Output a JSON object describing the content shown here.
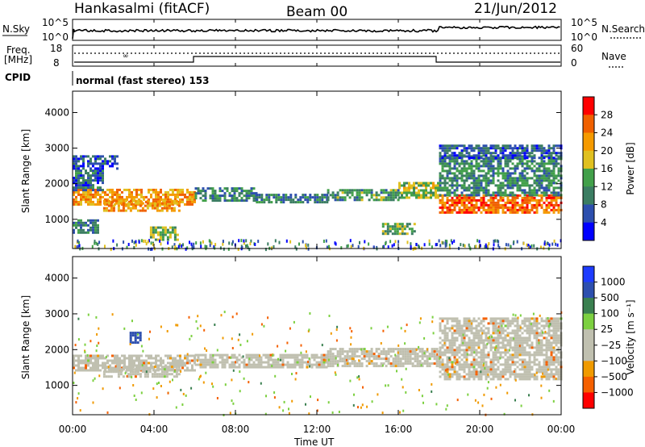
{
  "header": {
    "station": "Hankasalmi (fitACF)",
    "beam": "Beam 00",
    "date": "21/Jun/2012"
  },
  "noise_panel": {
    "left_label": "N.Sky",
    "right_label": "N.Search",
    "left_ticks": [
      "10^5",
      "10^0"
    ],
    "right_ticks": [
      "10^5",
      "10^0"
    ]
  },
  "freq_panel": {
    "left_label_1": "Freq.",
    "left_label_2": "[MHz]",
    "right_label": "Nave",
    "left_ticks": [
      "18",
      "8"
    ],
    "right_ticks": [
      "60",
      "0"
    ]
  },
  "cpid": {
    "label": "CPID",
    "value": "normal (fast stereo) 153"
  },
  "x_axis": {
    "label": "Time UT",
    "ticks": [
      "00:00",
      "04:00",
      "08:00",
      "12:00",
      "16:00",
      "20:00",
      "00:00"
    ]
  },
  "colors": {
    "power": [
      "#0000ff",
      "#2d4fae",
      "#3b7d62",
      "#42a04a",
      "#e0c020",
      "#f59a00",
      "#f06000",
      "#ff0000"
    ],
    "velocity": [
      "#ff0000",
      "#f56000",
      "#f09a00",
      "#c0c0b0",
      "#c0c0b0",
      "#7cd040",
      "#3a8050",
      "#2d4fae",
      "#1e3cff"
    ]
  },
  "chart_data": [
    {
      "type": "heatmap",
      "name": "power_panel",
      "ylabel": "Slant Range [km]",
      "xlabel": "Time UT",
      "x_ticks": [
        "00:00",
        "04:00",
        "08:00",
        "12:00",
        "16:00",
        "20:00",
        "00:00"
      ],
      "xlim_hours": [
        0,
        24
      ],
      "y_ticks": [
        1000,
        2000,
        3000,
        4000
      ],
      "ylim": [
        180,
        4600
      ],
      "colorbar": {
        "label": "Power [dB]",
        "ticks": [
          "4",
          "8",
          "12",
          "16",
          "20",
          "24",
          "28"
        ],
        "range": [
          0,
          30
        ]
      },
      "bands": [
        {
          "t0": 0.0,
          "t1": 6.0,
          "r0": 1420,
          "r1": 1860,
          "level": 22
        },
        {
          "t0": 1.5,
          "t1": 5.2,
          "r0": 1250,
          "r1": 1550,
          "level": 22
        },
        {
          "t0": 0.0,
          "t1": 1.5,
          "r0": 1850,
          "r1": 2400,
          "level": 8
        },
        {
          "t0": 0.0,
          "t1": 2.2,
          "r0": 2400,
          "r1": 2800,
          "level": 6
        },
        {
          "t0": 0.0,
          "t1": 1.2,
          "r0": 650,
          "r1": 1000,
          "level": 10
        },
        {
          "t0": 3.8,
          "t1": 5.2,
          "r0": 400,
          "r1": 800,
          "level": 14
        },
        {
          "t0": 6.0,
          "t1": 9.0,
          "r0": 1500,
          "r1": 1900,
          "level": 10
        },
        {
          "t0": 9.0,
          "t1": 12.5,
          "r0": 1480,
          "r1": 1720,
          "level": 9
        },
        {
          "t0": 12.5,
          "t1": 16.0,
          "r0": 1520,
          "r1": 1850,
          "level": 12
        },
        {
          "t0": 16.0,
          "t1": 18.0,
          "r0": 1580,
          "r1": 2050,
          "level": 16
        },
        {
          "t0": 18.0,
          "t1": 24.0,
          "r0": 1200,
          "r1": 1700,
          "level": 26
        },
        {
          "t0": 18.0,
          "t1": 24.0,
          "r0": 1700,
          "r1": 2800,
          "level": 11
        },
        {
          "t0": 18.0,
          "t1": 24.0,
          "r0": 2700,
          "r1": 3100,
          "level": 7
        },
        {
          "t0": 15.2,
          "t1": 16.8,
          "r0": 600,
          "r1": 900,
          "level": 14
        }
      ]
    },
    {
      "type": "heatmap",
      "name": "velocity_panel",
      "ylabel": "Slant Range [km]",
      "xlabel": "Time UT",
      "x_ticks": [
        "00:00",
        "04:00",
        "08:00",
        "12:00",
        "16:00",
        "20:00",
        "00:00"
      ],
      "xlim_hours": [
        0,
        24
      ],
      "y_ticks": [
        1000,
        2000,
        3000,
        4000
      ],
      "ylim": [
        180,
        4600
      ],
      "colorbar": {
        "label": "Velocity [m s⁻¹]",
        "ticks": [
          "1000",
          "500",
          "100",
          "25",
          "−25",
          "−100",
          "−500",
          "−1000"
        ],
        "range": [
          -1000,
          1000
        ]
      },
      "bands": [
        {
          "t0": 0.0,
          "t1": 6.0,
          "r0": 1400,
          "r1": 1860,
          "v": 0
        },
        {
          "t0": 1.5,
          "t1": 5.2,
          "r0": 1250,
          "r1": 1550,
          "v": 0
        },
        {
          "t0": 6.0,
          "t1": 12.5,
          "r0": 1480,
          "r1": 1880,
          "v": 0
        },
        {
          "t0": 12.5,
          "t1": 18.0,
          "r0": 1520,
          "r1": 2050,
          "v": 0
        },
        {
          "t0": 18.0,
          "t1": 24.0,
          "r0": 1150,
          "r1": 2900,
          "v": 0
        },
        {
          "t0": 2.8,
          "t1": 3.3,
          "r0": 2200,
          "r1": 2500,
          "v": 600
        }
      ]
    }
  ]
}
